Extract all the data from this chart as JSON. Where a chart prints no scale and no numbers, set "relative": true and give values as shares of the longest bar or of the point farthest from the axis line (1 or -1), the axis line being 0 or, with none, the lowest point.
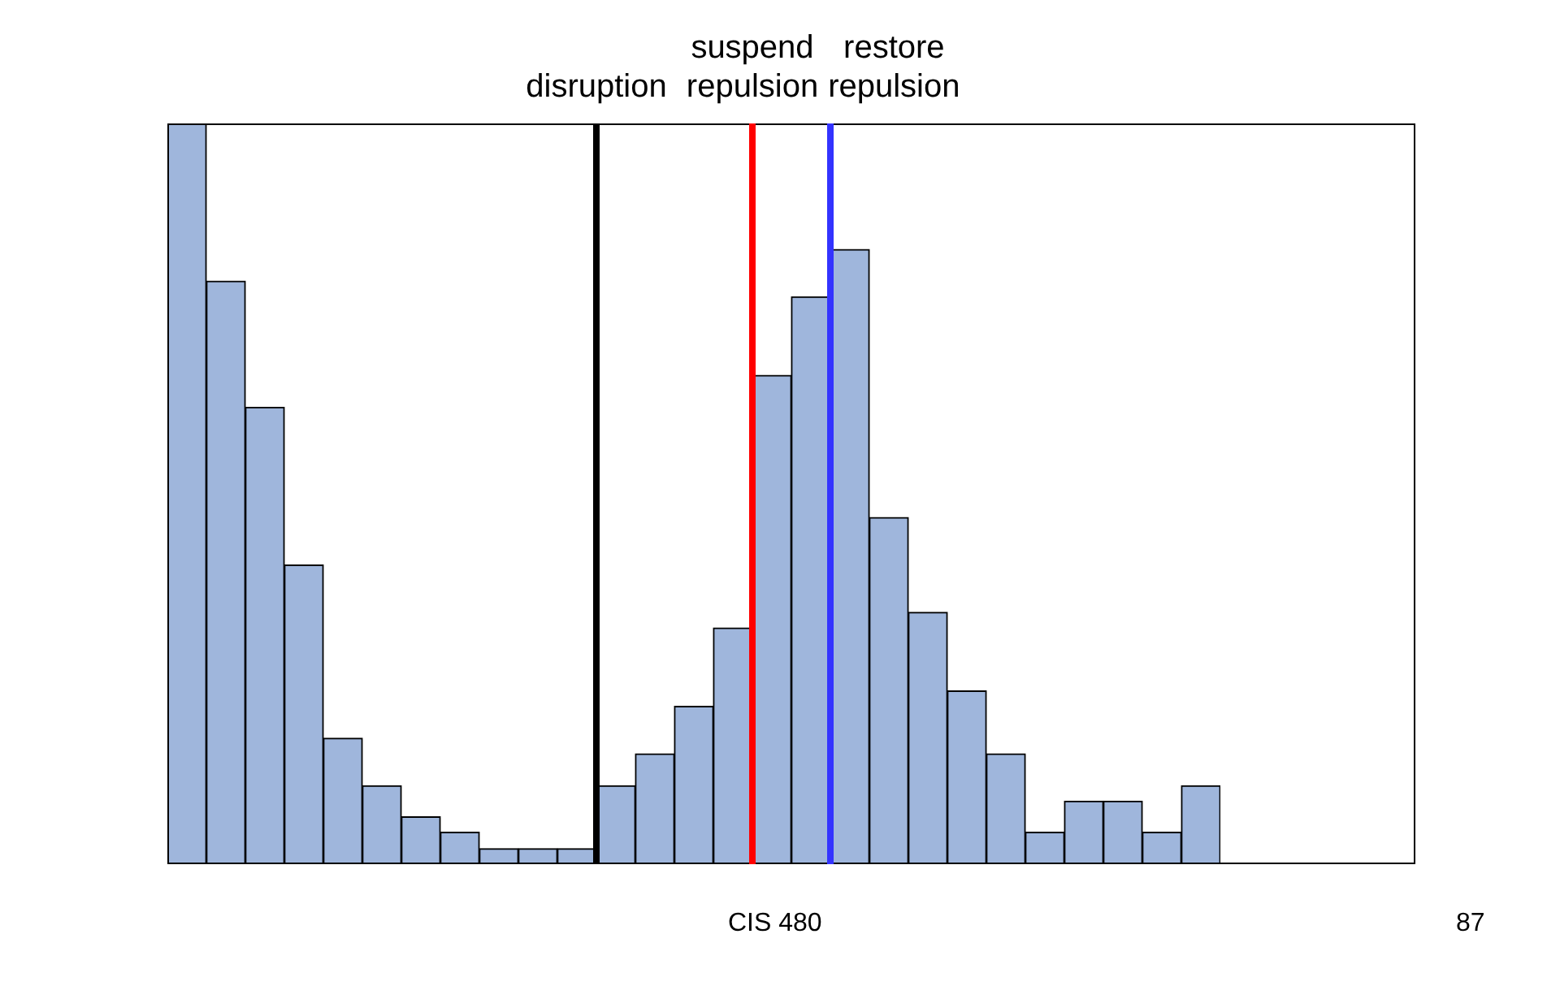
{
  "chart_data": {
    "type": "bar",
    "relative": true,
    "color": "#9fb6dc",
    "categories": [
      null,
      null,
      null,
      null,
      null,
      null,
      null,
      null,
      null,
      null,
      null,
      null,
      null,
      null,
      null,
      null,
      null,
      null,
      null,
      null,
      null,
      null,
      null,
      null,
      null,
      null,
      null
    ],
    "values": [
      1,
      0.787,
      0.617,
      0.404,
      0.17,
      0.106,
      0.064,
      0.043,
      0.021,
      0.021,
      0.021,
      0.106,
      0.149,
      0.213,
      0.319,
      0.66,
      0.766,
      0.83,
      0.468,
      0.34,
      0.234,
      0.149,
      0.043,
      0.085,
      0.085,
      0.043,
      0.106
    ],
    "ref_lines": [
      {
        "axis": "x",
        "label": "disruption",
        "color": "#000000"
      },
      {
        "axis": "x",
        "label": "suspend repulsion",
        "color": "#ff0000"
      },
      {
        "axis": "x",
        "label": "restore repulsion",
        "color": "#3333ff"
      }
    ],
    "legend": false,
    "annotations": [
      "CIS 480",
      "87"
    ]
  }
}
